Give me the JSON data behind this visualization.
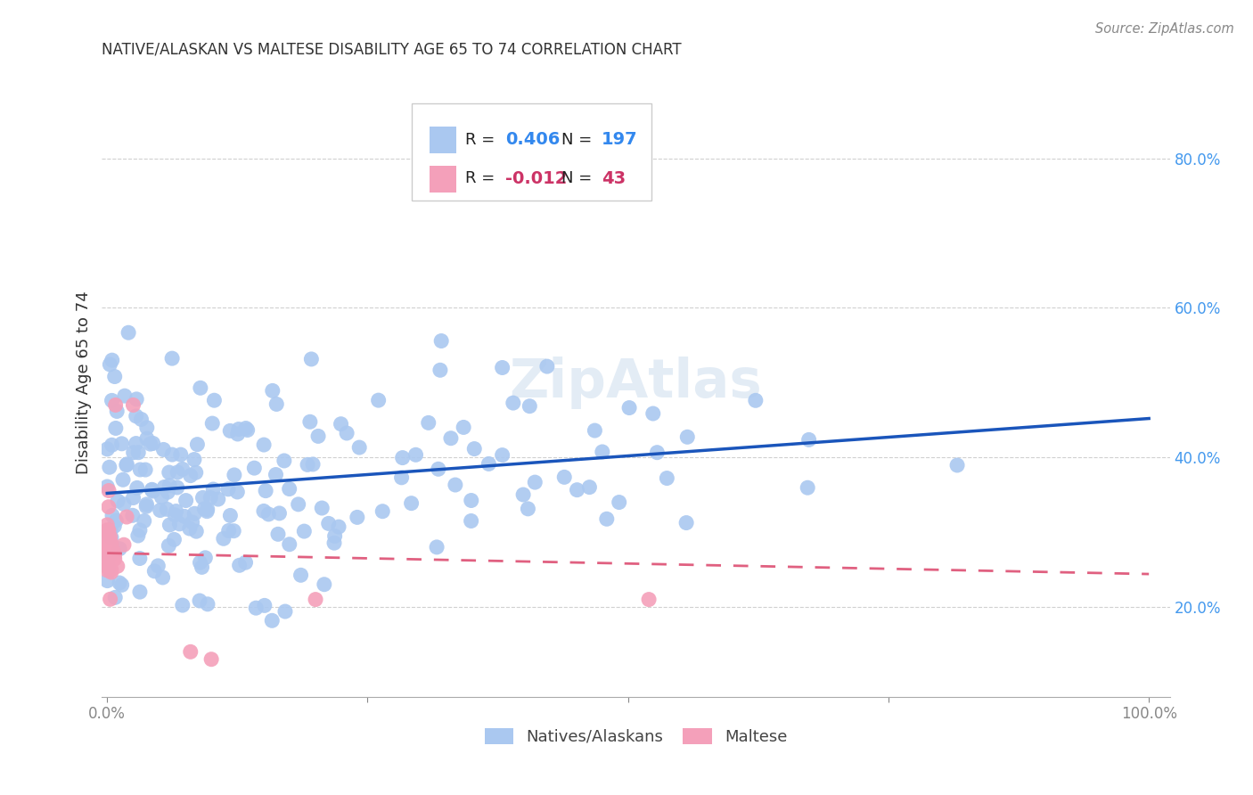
{
  "title": "NATIVE/ALASKAN VS MALTESE DISABILITY AGE 65 TO 74 CORRELATION CHART",
  "source": "Source: ZipAtlas.com",
  "ylabel": "Disability Age 65 to 74",
  "xlim": [
    -0.005,
    1.02
  ],
  "ylim": [
    0.08,
    0.92
  ],
  "xtick_positions": [
    0.0,
    0.25,
    0.5,
    0.75,
    1.0
  ],
  "xtick_labels": [
    "0.0%",
    "",
    "",
    "",
    "100.0%"
  ],
  "ytick_positions": [
    0.2,
    0.4,
    0.6,
    0.8
  ],
  "ytick_labels": [
    "20.0%",
    "40.0%",
    "60.0%",
    "80.0%"
  ],
  "background_color": "#ffffff",
  "grid_color": "#d0d0d0",
  "blue_color": "#aac8f0",
  "blue_line_color": "#1a55bb",
  "pink_color": "#f4a0ba",
  "pink_line_color": "#e06080",
  "legend_R1": "0.406",
  "legend_N1": "197",
  "legend_R2": "-0.012",
  "legend_N2": "43",
  "blue_intercept": 0.352,
  "blue_slope": 0.1,
  "pink_intercept": 0.272,
  "pink_slope": -0.028,
  "title_fontsize": 12,
  "tick_fontsize": 12,
  "ylabel_fontsize": 13
}
